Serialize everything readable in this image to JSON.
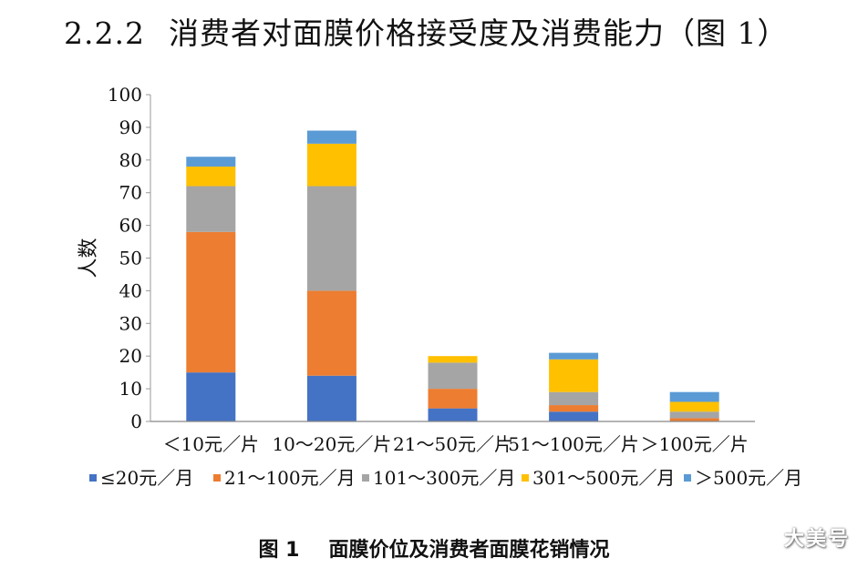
{
  "heading": {
    "number": "2.2.2",
    "text": "消费者对面膜价格接受度及消费能力（图 1）"
  },
  "caption": {
    "figure": "图 1",
    "text": "面膜价位及消费者面膜花销情况"
  },
  "watermark": "大美号",
  "chart_data": {
    "type": "bar",
    "stacked": true,
    "ylabel": "人数",
    "xlabel": "",
    "ylim": [
      0,
      100
    ],
    "yticks": [
      0,
      10,
      20,
      30,
      40,
      50,
      60,
      70,
      80,
      90,
      100
    ],
    "categories": [
      "＜10元／片",
      "10～20元／片",
      "21～50元／片",
      "51～100元／片",
      "＞100元／片"
    ],
    "series": [
      {
        "name": "≤20元／月",
        "color": "#4472C4",
        "values": [
          15,
          14,
          4,
          3,
          0
        ]
      },
      {
        "name": "21～100元／月",
        "color": "#ED7D31",
        "values": [
          43,
          26,
          6,
          2,
          1
        ]
      },
      {
        "name": "101～300元／月",
        "color": "#A5A5A5",
        "values": [
          14,
          32,
          8,
          4,
          2
        ]
      },
      {
        "name": "301～500元／月",
        "color": "#FFC000",
        "values": [
          6,
          13,
          2,
          10,
          3
        ]
      },
      {
        "name": "＞500元／月",
        "color": "#5B9BD5",
        "values": [
          3,
          4,
          0,
          2,
          3
        ]
      }
    ],
    "grid": false,
    "legend_position": "bottom"
  }
}
